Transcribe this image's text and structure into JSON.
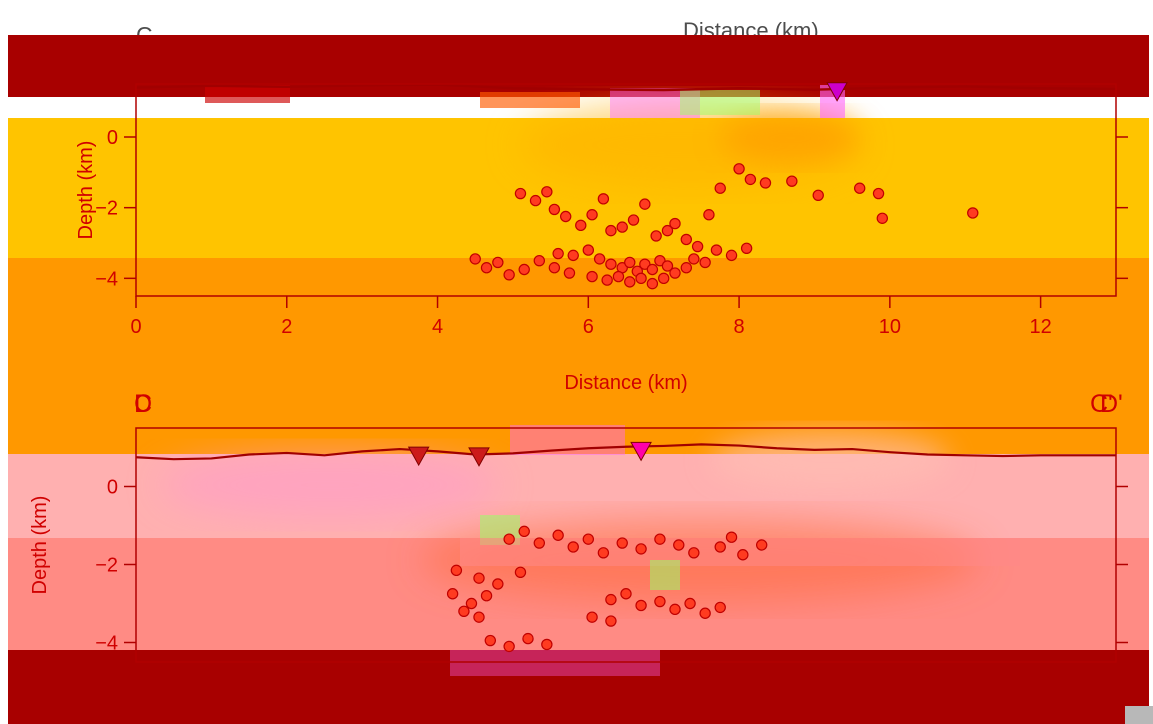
{
  "figure": {
    "top_left_label": "C",
    "top_header_text": "Distance (km)"
  },
  "chart_data": [
    {
      "type": "scatter",
      "corner_labels": [
        "C",
        "C'"
      ],
      "title": "",
      "xlabel": "Distance (km)",
      "ylabel": "Depth (km)",
      "xlim": [
        0,
        13
      ],
      "ylim": [
        -4.5,
        1.5
      ],
      "x_ticks": [
        0,
        2,
        4,
        6,
        8,
        10,
        12
      ],
      "y_ticks": [
        0,
        -2,
        -4
      ],
      "grid": false,
      "legend": "none",
      "colors": {
        "frame": "#b00000",
        "text": "#d00000",
        "background_low": "#ffc400",
        "background_mid": "#ff9800",
        "background_high": "#cc0000",
        "point_fill": "#ff3b20",
        "point_stroke": "#c00000",
        "station_marker": "#cc00cc"
      },
      "topography": [
        [
          0,
          1.4
        ],
        [
          1,
          1.45
        ],
        [
          2,
          1.42
        ],
        [
          3,
          1.46
        ],
        [
          4,
          1.48
        ],
        [
          5,
          1.38
        ],
        [
          6,
          1.35
        ],
        [
          7,
          1.33
        ],
        [
          8,
          1.38
        ],
        [
          9,
          1.34
        ],
        [
          10,
          1.4
        ],
        [
          11,
          1.43
        ],
        [
          12,
          1.38
        ],
        [
          13,
          1.36
        ]
      ],
      "stations": [
        {
          "x": 9.3,
          "y": 1.28
        }
      ],
      "points": [
        [
          5.1,
          -1.6
        ],
        [
          5.3,
          -1.8
        ],
        [
          5.45,
          -1.55
        ],
        [
          5.55,
          -2.05
        ],
        [
          5.7,
          -2.25
        ],
        [
          5.9,
          -2.5
        ],
        [
          6.05,
          -2.2
        ],
        [
          6.2,
          -1.75
        ],
        [
          6.3,
          -2.65
        ],
        [
          6.45,
          -2.55
        ],
        [
          6.6,
          -2.35
        ],
        [
          6.75,
          -1.9
        ],
        [
          6.9,
          -2.8
        ],
        [
          7.05,
          -2.65
        ],
        [
          7.15,
          -2.45
        ],
        [
          7.3,
          -2.9
        ],
        [
          7.45,
          -3.1
        ],
        [
          7.6,
          -2.2
        ],
        [
          7.75,
          -1.45
        ],
        [
          8.0,
          -0.9
        ],
        [
          8.15,
          -1.2
        ],
        [
          8.35,
          -1.3
        ],
        [
          8.7,
          -1.25
        ],
        [
          9.05,
          -1.65
        ],
        [
          9.6,
          -1.45
        ],
        [
          9.85,
          -1.6
        ],
        [
          9.9,
          -2.3
        ],
        [
          11.1,
          -2.15
        ],
        [
          5.6,
          -3.3
        ],
        [
          5.8,
          -3.35
        ],
        [
          6.0,
          -3.2
        ],
        [
          6.15,
          -3.45
        ],
        [
          6.3,
          -3.6
        ],
        [
          6.45,
          -3.7
        ],
        [
          6.55,
          -3.55
        ],
        [
          6.65,
          -3.8
        ],
        [
          6.75,
          -3.6
        ],
        [
          6.85,
          -3.75
        ],
        [
          6.95,
          -3.5
        ],
        [
          7.05,
          -3.65
        ],
        [
          7.15,
          -3.85
        ],
        [
          7.3,
          -3.7
        ],
        [
          7.4,
          -3.45
        ],
        [
          7.55,
          -3.55
        ],
        [
          6.05,
          -3.95
        ],
        [
          6.25,
          -4.05
        ],
        [
          6.4,
          -3.95
        ],
        [
          6.55,
          -4.1
        ],
        [
          6.7,
          -4.0
        ],
        [
          6.85,
          -4.15
        ],
        [
          7.0,
          -4.0
        ],
        [
          4.5,
          -3.45
        ],
        [
          4.65,
          -3.7
        ],
        [
          4.8,
          -3.55
        ],
        [
          4.95,
          -3.9
        ],
        [
          5.15,
          -3.75
        ],
        [
          5.35,
          -3.5
        ],
        [
          5.55,
          -3.7
        ],
        [
          5.75,
          -3.85
        ],
        [
          7.7,
          -3.2
        ],
        [
          7.9,
          -3.35
        ],
        [
          8.1,
          -3.15
        ]
      ]
    },
    {
      "type": "scatter",
      "corner_labels": [
        "D",
        "D'"
      ],
      "title": "",
      "xlabel": "Distance (km)",
      "ylabel": "Depth (km)",
      "xlim": [
        0,
        13
      ],
      "ylim": [
        -4.5,
        1.5
      ],
      "x_ticks": [],
      "y_ticks": [
        0,
        -2,
        -4
      ],
      "grid": false,
      "legend": "none",
      "colors": {
        "frame": "#b00000",
        "text": "#d00000",
        "background_low": "#ffb0b0",
        "background_mid": "#ff9090",
        "background_high": "#ff6a3a",
        "point_fill": "#ff3b20",
        "point_stroke": "#c00000",
        "station_marker": "#cc1a1a",
        "station_marker_alt": "#ff00aa"
      },
      "topography": [
        [
          0,
          0.75
        ],
        [
          0.5,
          0.7
        ],
        [
          1,
          0.72
        ],
        [
          1.5,
          0.82
        ],
        [
          2,
          0.86
        ],
        [
          2.5,
          0.8
        ],
        [
          3,
          0.9
        ],
        [
          3.5,
          0.96
        ],
        [
          4,
          0.9
        ],
        [
          4.5,
          0.82
        ],
        [
          5,
          0.85
        ],
        [
          5.5,
          0.92
        ],
        [
          6,
          0.98
        ],
        [
          6.5,
          1.02
        ],
        [
          7,
          1.04
        ],
        [
          7.5,
          1.08
        ],
        [
          8,
          1.05
        ],
        [
          8.5,
          0.98
        ],
        [
          9,
          0.94
        ],
        [
          9.5,
          0.96
        ],
        [
          10,
          0.88
        ],
        [
          10.5,
          0.82
        ],
        [
          11,
          0.8
        ],
        [
          11.5,
          0.78
        ],
        [
          12,
          0.8
        ],
        [
          13,
          0.8
        ]
      ],
      "stations": [
        {
          "x": 3.75,
          "y": 0.78,
          "style": "dark"
        },
        {
          "x": 4.55,
          "y": 0.76,
          "style": "dark"
        },
        {
          "x": 6.7,
          "y": 0.9,
          "style": "pink"
        }
      ],
      "points": [
        [
          4.95,
          -1.35
        ],
        [
          5.15,
          -1.15
        ],
        [
          5.35,
          -1.45
        ],
        [
          5.6,
          -1.25
        ],
        [
          5.8,
          -1.55
        ],
        [
          6.0,
          -1.35
        ],
        [
          6.2,
          -1.7
        ],
        [
          6.45,
          -1.45
        ],
        [
          6.7,
          -1.6
        ],
        [
          6.95,
          -1.35
        ],
        [
          7.2,
          -1.5
        ],
        [
          7.4,
          -1.7
        ],
        [
          7.75,
          -1.55
        ],
        [
          7.9,
          -1.3
        ],
        [
          8.05,
          -1.75
        ],
        [
          8.3,
          -1.5
        ],
        [
          4.25,
          -2.15
        ],
        [
          4.55,
          -2.35
        ],
        [
          4.8,
          -2.5
        ],
        [
          5.1,
          -2.2
        ],
        [
          4.2,
          -2.75
        ],
        [
          4.45,
          -3.0
        ],
        [
          4.65,
          -2.8
        ],
        [
          4.35,
          -3.2
        ],
        [
          4.55,
          -3.35
        ],
        [
          6.3,
          -2.9
        ],
        [
          6.5,
          -2.75
        ],
        [
          6.7,
          -3.05
        ],
        [
          6.95,
          -2.95
        ],
        [
          7.15,
          -3.15
        ],
        [
          7.35,
          -3.0
        ],
        [
          7.55,
          -3.25
        ],
        [
          7.75,
          -3.1
        ],
        [
          6.05,
          -3.35
        ],
        [
          6.3,
          -3.45
        ],
        [
          4.7,
          -3.95
        ],
        [
          4.95,
          -4.1
        ],
        [
          5.2,
          -3.9
        ],
        [
          5.45,
          -4.05
        ]
      ]
    }
  ]
}
